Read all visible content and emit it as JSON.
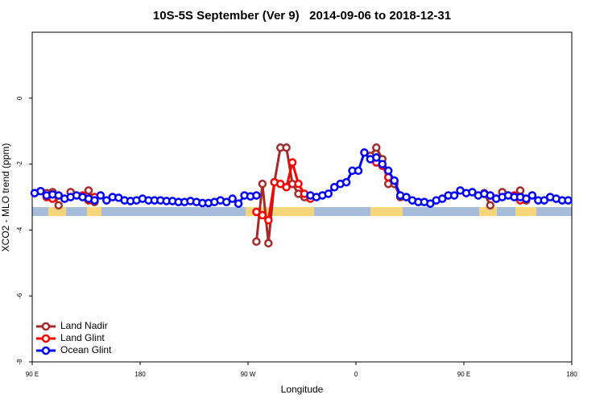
{
  "chart_data": {
    "type": "line",
    "title": "10S-5S September (Ver 9)   2014-09-06 to 2018-12-31",
    "x_label": "Longitude",
    "y_label": "XCO2 - MLO trend (ppm)",
    "x": [
      92,
      97,
      102,
      107,
      112,
      117,
      122,
      127,
      132,
      137,
      142,
      147,
      152,
      157,
      162,
      167,
      172,
      177,
      182,
      187,
      192,
      197,
      202,
      207,
      212,
      217,
      222,
      227,
      232,
      237,
      242,
      247,
      252,
      257,
      262,
      267,
      272,
      277,
      282,
      287,
      292,
      297,
      302,
      307,
      312,
      317,
      322,
      327,
      332,
      337,
      342,
      347,
      352,
      357,
      362,
      367,
      372,
      377,
      382,
      387,
      392,
      397,
      402,
      407,
      412,
      417,
      422,
      427,
      432,
      437,
      442,
      447,
      452,
      457,
      462,
      467,
      472,
      477,
      482,
      487,
      492,
      497,
      502,
      507,
      512,
      517,
      522,
      527,
      532,
      537
    ],
    "xlim": [
      90,
      540
    ],
    "xticks": [
      {
        "value": 90,
        "label": "90 E"
      },
      180,
      {
        "value": 270,
        "label": "90 W"
      },
      {
        "value": 360,
        "label": "0"
      },
      {
        "value": 450,
        "label": "90 E"
      },
      {
        "value": 540,
        "label": "180"
      }
    ],
    "ylim": [
      -8,
      2
    ],
    "yticks": [
      -8,
      -6,
      -4,
      -2,
      0
    ],
    "legend_position": "bottom-left",
    "series": [
      {
        "name": "Land Nadir",
        "color": "#a52a2a",
        "values": [
          null,
          null,
          -2.88,
          -2.85,
          -3.25,
          null,
          -2.85,
          null,
          null,
          -2.8,
          -3.15,
          null,
          null,
          null,
          null,
          null,
          null,
          null,
          null,
          null,
          null,
          null,
          null,
          null,
          null,
          null,
          null,
          null,
          null,
          null,
          null,
          null,
          null,
          null,
          null,
          null,
          null,
          -4.35,
          -2.6,
          -4.4,
          -2.55,
          -1.5,
          -1.5,
          -2.6,
          -2.9,
          -3.0,
          null,
          null,
          null,
          null,
          null,
          null,
          null,
          null,
          null,
          null,
          -1.75,
          -1.5,
          -1.85,
          -2.6,
          -2.6,
          -3.0,
          null,
          null,
          null,
          null,
          null,
          null,
          null,
          null,
          null,
          null,
          null,
          null,
          null,
          -2.88,
          -3.25,
          null,
          -2.85,
          null,
          null,
          -2.8,
          -3.1,
          null,
          null,
          null,
          null,
          null,
          null,
          null
        ]
      },
      {
        "name": "Land Glint",
        "color": "#ff0000",
        "values": [
          null,
          null,
          -3.0,
          -3.05,
          -2.95,
          null,
          null,
          null,
          -2.95,
          -3.1,
          -3.0,
          null,
          null,
          null,
          null,
          null,
          null,
          null,
          null,
          null,
          null,
          null,
          null,
          null,
          null,
          null,
          null,
          null,
          null,
          null,
          null,
          null,
          null,
          null,
          null,
          null,
          null,
          -3.45,
          -3.55,
          -3.7,
          -2.55,
          -2.6,
          -2.7,
          -1.95,
          -2.6,
          -2.9,
          -3.05,
          null,
          null,
          null,
          null,
          null,
          null,
          null,
          null,
          null,
          null,
          -1.95,
          -2.05,
          -2.4,
          -2.5,
          null,
          null,
          null,
          null,
          null,
          null,
          null,
          null,
          null,
          null,
          null,
          null,
          null,
          null,
          -2.9,
          -2.95,
          -3.05,
          null,
          null,
          -2.95,
          -3.1,
          -3.05,
          null,
          null,
          null,
          null,
          null,
          null,
          null
        ]
      },
      {
        "name": "Ocean Glint",
        "color": "#0000ff",
        "values": [
          -2.88,
          -2.82,
          -2.95,
          -2.92,
          -2.95,
          -3.05,
          -3.0,
          -2.95,
          -3.0,
          -3.05,
          -3.1,
          -2.95,
          -3.1,
          -3.0,
          -3.02,
          -3.1,
          -3.12,
          -3.1,
          -3.05,
          -3.1,
          -3.1,
          -3.1,
          -3.12,
          -3.12,
          -3.15,
          -3.15,
          -3.12,
          -3.15,
          -3.18,
          -3.18,
          -3.15,
          -3.1,
          -3.15,
          -3.05,
          -3.2,
          -2.95,
          -2.98,
          -2.95,
          null,
          null,
          null,
          null,
          null,
          null,
          null,
          null,
          -2.95,
          -3.0,
          -2.95,
          -2.9,
          -2.7,
          -2.6,
          -2.55,
          -2.2,
          -2.2,
          -1.65,
          -1.85,
          -1.8,
          -2.0,
          -2.2,
          -2.5,
          -2.95,
          -3.0,
          -3.1,
          -3.15,
          -3.15,
          -3.2,
          -3.1,
          -3.05,
          -2.95,
          -2.95,
          -2.8,
          -2.88,
          -2.85,
          -2.95,
          -2.9,
          -2.95,
          -3.05,
          -3.0,
          -2.95,
          -3.0,
          -3.0,
          -3.05,
          -2.95,
          -3.1,
          -3.1,
          -3.0,
          -3.05,
          -3.1,
          -3.1
        ]
      }
    ]
  }
}
